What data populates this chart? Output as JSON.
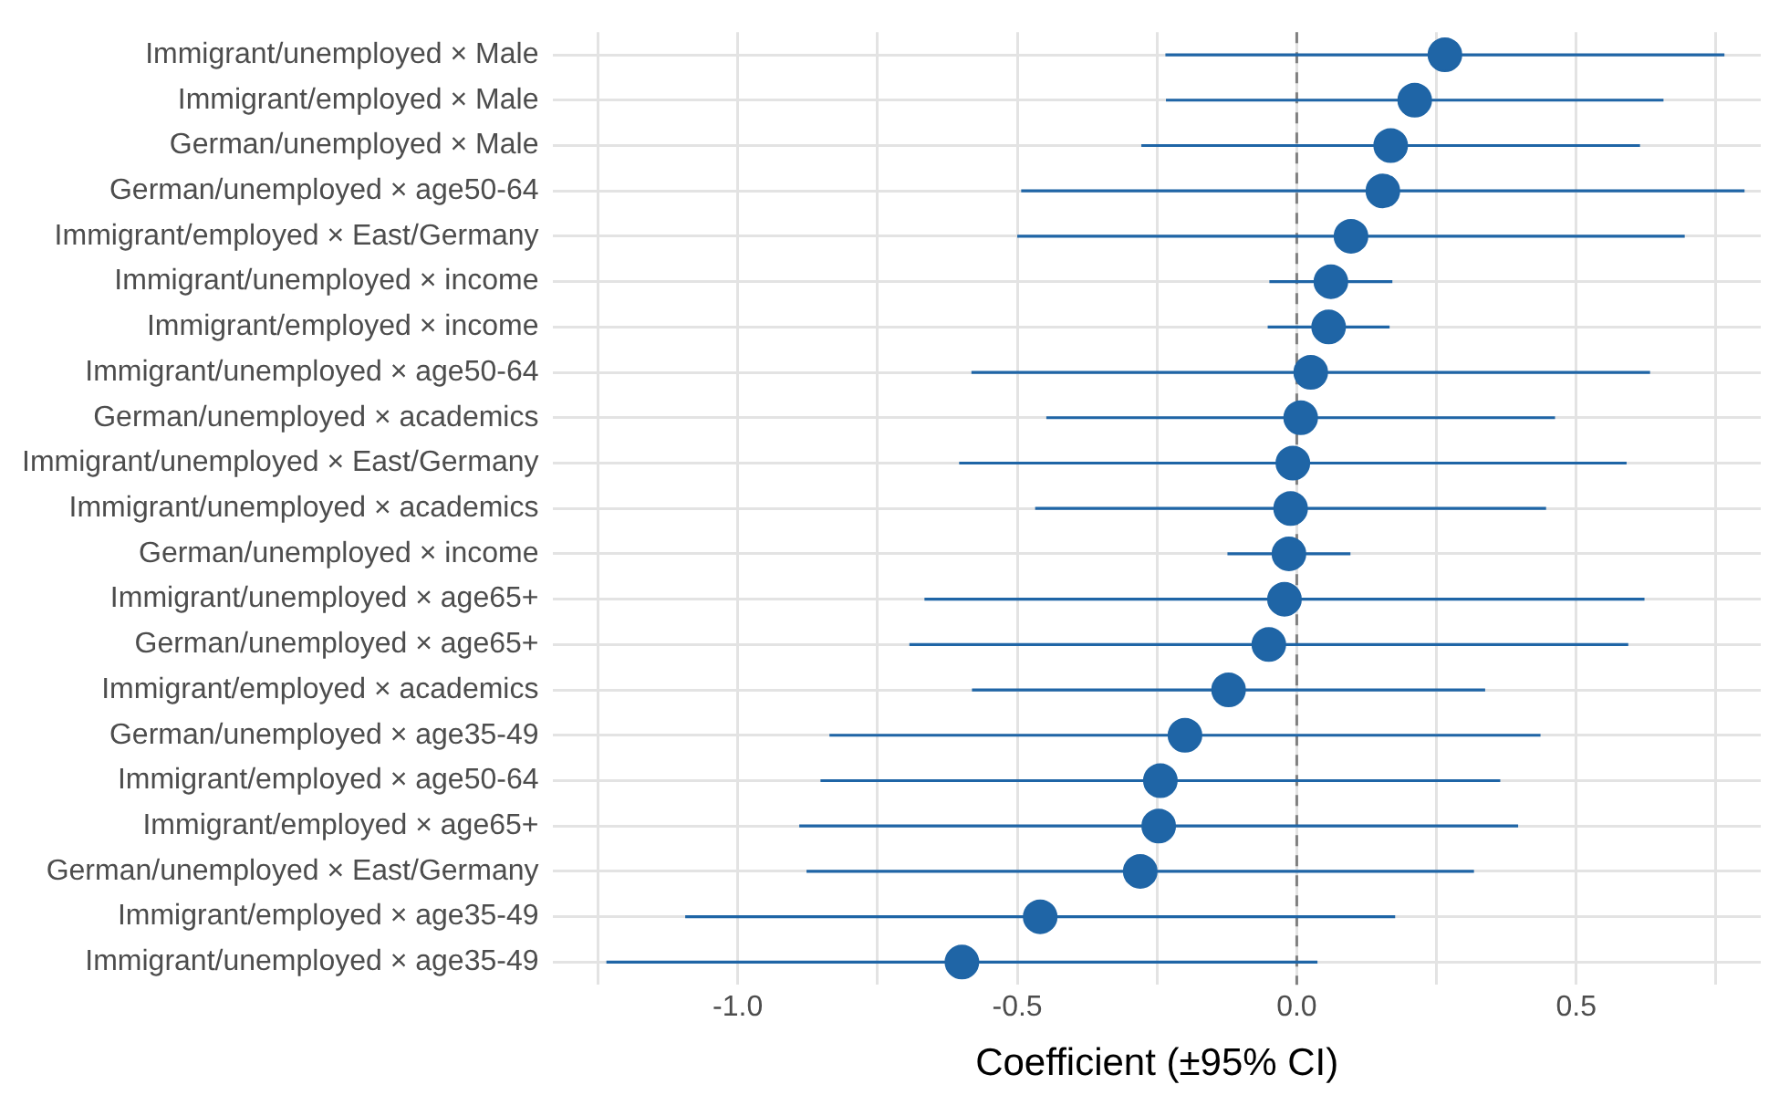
{
  "chart_data": {
    "type": "scatter",
    "orientation": "horizontal",
    "xlabel": "Coefficient (±95% CI)",
    "categories": [
      "Immigrant/unemployed × Male",
      "Immigrant/employed × Male",
      "German/unemployed × Male",
      "German/unemployed × age50-64",
      "Immigrant/employed × East/Germany",
      "Immigrant/unemployed × income",
      "Immigrant/employed × income",
      "Immigrant/unemployed × age50-64",
      "German/unemployed × academics",
      "Immigrant/unemployed × East/Germany",
      "Immigrant/unemployed × academics",
      "German/unemployed × income",
      "Immigrant/unemployed × age65+",
      "German/unemployed × age65+",
      "Immigrant/employed × academics",
      "German/unemployed × age35-49",
      "Immigrant/employed × age50-64",
      "Immigrant/employed × age65+",
      "German/unemployed × East/Germany",
      "Immigrant/employed × age35-49",
      "Immigrant/unemployed × age35-49"
    ],
    "values": [
      0.265,
      0.211,
      0.168,
      0.154,
      0.097,
      0.061,
      0.057,
      0.025,
      0.007,
      -0.007,
      -0.011,
      -0.014,
      -0.022,
      -0.05,
      -0.122,
      -0.2,
      -0.244,
      -0.247,
      -0.28,
      -0.459,
      -0.599
    ],
    "errors": [
      0.5,
      0.445,
      0.446,
      0.647,
      0.597,
      0.11,
      0.109,
      0.607,
      0.455,
      0.597,
      0.457,
      0.11,
      0.644,
      0.643,
      0.459,
      0.636,
      0.608,
      0.643,
      0.597,
      0.635,
      0.636
    ],
    "color": "#1f65a6",
    "marker": "circle",
    "xlim": [
      -1.33,
      0.83
    ],
    "xticks": [
      {
        "value": -1.25,
        "label": null
      },
      {
        "value": -1,
        "label": "-1.0"
      },
      {
        "value": -0.75,
        "label": null
      },
      {
        "value": -0.5,
        "label": "-0.5"
      },
      {
        "value": -0.25,
        "label": null
      },
      {
        "value": 0,
        "label": "0.0"
      },
      {
        "value": 0.25,
        "label": null
      },
      {
        "value": 0.5,
        "label": "0.5"
      },
      {
        "value": 0.75,
        "label": null
      }
    ],
    "ref_lines": [
      {
        "axis": "x",
        "value": 0,
        "color": "#808080",
        "line_style": "dashed"
      }
    ],
    "grid": true,
    "legend": false
  }
}
